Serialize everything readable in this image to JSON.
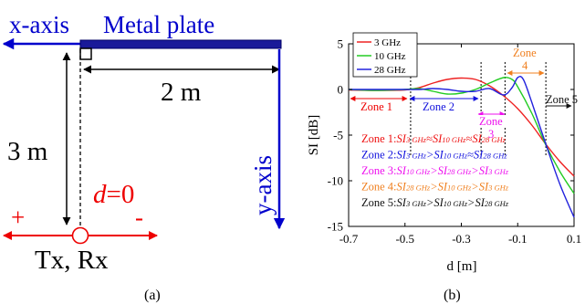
{
  "left_panel": {
    "x_axis_label": "x-axis",
    "metal_plate_label": "Metal plate",
    "horizontal_distance": "2 m",
    "vertical_distance": "3 m",
    "y_axis_label": "y-axis",
    "d_symbol": "d",
    "d_value": "=0",
    "plus_sign": "+",
    "minus_sign": "-",
    "txrx_label": "Tx, Rx",
    "caption": "(a)"
  },
  "right_panel": {
    "caption": "(b)",
    "zone_labels": {
      "zone1": "Zone 1",
      "zone2": "Zone 2",
      "zone3_word": "Zone",
      "zone3_num": "3",
      "zone4_word": "Zone",
      "zone4_num": "4",
      "zone5": "Zone 5"
    },
    "annotations": [
      {
        "prefix": "Zone 1:",
        "rel": [
          "≈",
          "≈"
        ],
        "subs": [
          "3 GHz",
          "10 GHz",
          "28 GHz"
        ],
        "color": "#ee1111"
      },
      {
        "prefix": "Zone 2:",
        "rel": [
          ">",
          "≈"
        ],
        "subs": [
          "3 GHz",
          "10 GHz",
          "28 GHz"
        ],
        "color": "#1111dd"
      },
      {
        "prefix": "Zone 3:",
        "rel": [
          ">",
          ">"
        ],
        "subs": [
          "10 GHz",
          "28 GHz",
          "3 GHz"
        ],
        "color": "#ee11ee"
      },
      {
        "prefix": "Zone 4:",
        "rel": [
          ">",
          ">"
        ],
        "subs": [
          "28 GHz",
          "10 GHz",
          "3 GHz"
        ],
        "color": "#f08020"
      },
      {
        "prefix": "Zone 5:",
        "rel": [
          ">",
          ">"
        ],
        "subs": [
          "3 GHz",
          "10 GHz",
          "28 GHz"
        ],
        "color": "#111111"
      }
    ],
    "si_symbol": "SI"
  },
  "chart_data": {
    "type": "line",
    "xlabel": "d [m]",
    "ylabel": "SI [dB]",
    "xlim": [
      -0.7,
      0.1
    ],
    "ylim": [
      -15,
      5
    ],
    "xticks": [
      -0.7,
      -0.5,
      -0.3,
      -0.1,
      0.1
    ],
    "xtick_labels": [
      "-0.7",
      "-0.5",
      "-0.3",
      "-0.1",
      "0.1"
    ],
    "yticks": [
      5,
      0,
      -5,
      -10,
      -15
    ],
    "ytick_labels": [
      "5",
      "0",
      "-5",
      "-10",
      "-15"
    ],
    "legend_position": "top-left",
    "grid": false,
    "zone_boundaries": [
      -0.48,
      -0.23,
      -0.145,
      0
    ],
    "series": [
      {
        "name": "3 GHz",
        "color": "#ee2222",
        "x": [
          -0.7,
          -0.6,
          -0.5,
          -0.45,
          -0.4,
          -0.35,
          -0.3,
          -0.25,
          -0.2,
          -0.15,
          -0.1,
          -0.05,
          0,
          0.05,
          0.1
        ],
        "y": [
          -0.05,
          -0.1,
          -0.05,
          0.2,
          0.7,
          1.1,
          1.25,
          1.1,
          0.4,
          -0.7,
          -2.1,
          -3.9,
          -6.0,
          -7.9,
          -9.5
        ]
      },
      {
        "name": "10 GHz",
        "color": "#22cc22",
        "x": [
          -0.7,
          -0.6,
          -0.5,
          -0.45,
          -0.4,
          -0.35,
          -0.3,
          -0.25,
          -0.2,
          -0.15,
          -0.12,
          -0.1,
          -0.05,
          0,
          0.05,
          0.1
        ],
        "y": [
          0.0,
          -0.1,
          0.0,
          0.1,
          -0.2,
          -0.5,
          -0.4,
          0.0,
          0.7,
          1.3,
          1.1,
          0.3,
          -2.6,
          -6.1,
          -9.0,
          -11.4
        ]
      },
      {
        "name": "28 GHz",
        "color": "#2222dd",
        "x": [
          -0.7,
          -0.6,
          -0.5,
          -0.45,
          -0.4,
          -0.35,
          -0.3,
          -0.25,
          -0.2,
          -0.15,
          -0.12,
          -0.1,
          -0.08,
          -0.05,
          0,
          0.05,
          0.1
        ],
        "y": [
          0.0,
          0.0,
          0.0,
          0.0,
          0.1,
          0.0,
          -0.2,
          -0.2,
          0.1,
          -0.6,
          0.2,
          1.3,
          1.1,
          -1.4,
          -6.0,
          -10.4,
          -14.0
        ]
      }
    ]
  }
}
